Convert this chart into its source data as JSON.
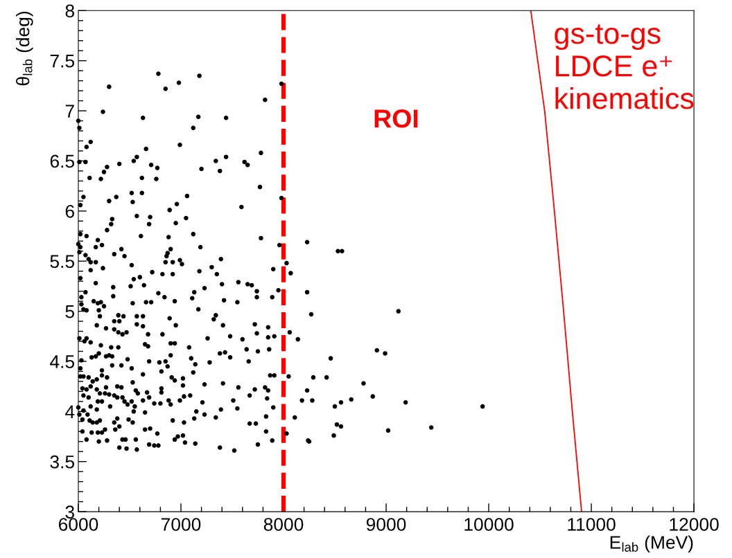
{
  "chart_data": {
    "type": "scatter",
    "xlabel": "E$_{lab}$ (MeV)",
    "ylabel": "θ$_{lab}$ (deg)",
    "xlim": [
      6000,
      12000
    ],
    "ylim": [
      3,
      8
    ],
    "xticks": [
      6000,
      {
        "value": 6200,
        "label": null
      },
      {
        "value": 6400,
        "label": null
      },
      {
        "value": 6600,
        "label": null
      },
      {
        "value": 6800,
        "label": null
      },
      7000,
      {
        "value": 7200,
        "label": null
      },
      {
        "value": 7400,
        "label": null
      },
      {
        "value": 7600,
        "label": null
      },
      {
        "value": 7800,
        "label": null
      },
      8000,
      {
        "value": 8200,
        "label": null
      },
      {
        "value": 8400,
        "label": null
      },
      {
        "value": 8600,
        "label": null
      },
      {
        "value": 8800,
        "label": null
      },
      9000,
      {
        "value": 9200,
        "label": null
      },
      {
        "value": 9400,
        "label": null
      },
      {
        "value": 9600,
        "label": null
      },
      {
        "value": 9800,
        "label": null
      },
      10000,
      {
        "value": 10200,
        "label": null
      },
      {
        "value": 10400,
        "label": null
      },
      {
        "value": 10600,
        "label": null
      },
      {
        "value": 10800,
        "label": null
      },
      11000,
      {
        "value": 11200,
        "label": null
      },
      {
        "value": 11400,
        "label": null
      },
      {
        "value": 11600,
        "label": null
      },
      {
        "value": 11800,
        "label": null
      },
      12000
    ],
    "yticks": [
      3,
      {
        "value": 3.1,
        "label": null
      },
      {
        "value": 3.2,
        "label": null
      },
      {
        "value": 3.3,
        "label": null
      },
      {
        "value": 3.4,
        "label": null
      },
      3.5,
      {
        "value": 3.6,
        "label": null
      },
      {
        "value": 3.7,
        "label": null
      },
      {
        "value": 3.8,
        "label": null
      },
      {
        "value": 3.9,
        "label": null
      },
      4,
      {
        "value": 4.1,
        "label": null
      },
      {
        "value": 4.2,
        "label": null
      },
      {
        "value": 4.3,
        "label": null
      },
      {
        "value": 4.4,
        "label": null
      },
      4.5,
      {
        "value": 4.6,
        "label": null
      },
      {
        "value": 4.7,
        "label": null
      },
      {
        "value": 4.8,
        "label": null
      },
      {
        "value": 4.9,
        "label": null
      },
      5,
      {
        "value": 5.1,
        "label": null
      },
      {
        "value": 5.2,
        "label": null
      },
      {
        "value": 5.3,
        "label": null
      },
      {
        "value": 5.4,
        "label": null
      },
      5.5,
      {
        "value": 5.6,
        "label": null
      },
      {
        "value": 5.7,
        "label": null
      },
      {
        "value": 5.8,
        "label": null
      },
      {
        "value": 5.9,
        "label": null
      },
      6,
      {
        "value": 6.1,
        "label": null
      },
      {
        "value": 6.2,
        "label": null
      },
      {
        "value": 6.3,
        "label": null
      },
      {
        "value": 6.4,
        "label": null
      },
      6.5,
      {
        "value": 6.6,
        "label": null
      },
      {
        "value": 6.7,
        "label": null
      },
      {
        "value": 6.8,
        "label": null
      },
      {
        "value": 6.9,
        "label": null
      },
      7,
      {
        "value": 7.1,
        "label": null
      },
      {
        "value": 7.2,
        "label": null
      },
      {
        "value": 7.3,
        "label": null
      },
      {
        "value": 7.4,
        "label": null
      },
      7.5,
      {
        "value": 7.6,
        "label": null
      },
      {
        "value": 7.7,
        "label": null
      },
      {
        "value": 7.8,
        "label": null
      },
      {
        "value": 7.9,
        "label": null
      },
      8
    ],
    "ref_lines": [
      {
        "axis": "x",
        "value": 8000,
        "label": "ROI",
        "color": "#ff0000",
        "line_style": "dashed"
      }
    ],
    "series": [
      {
        "color": "#000000",
        "marker": "circle",
        "x": [
          6000,
          6010,
          6120,
          6080,
          6240,
          6300,
          6780,
          6850,
          6980,
          6630,
          6990,
          6660,
          6010,
          6070,
          6110,
          6220,
          6250,
          6280,
          6400,
          6540,
          6570,
          6710,
          6770,
          6620,
          6760,
          6020,
          6050,
          6300,
          6370,
          6520,
          6530,
          6620,
          6570,
          6700,
          6690,
          6890,
          6960,
          7060,
          7050,
          6330,
          6320,
          6280,
          6950,
          6610,
          6880,
          6020,
          6080,
          6000,
          6010,
          6020,
          6070,
          6100,
          6120,
          6190,
          6230,
          6170,
          6170,
          6240,
          6120,
          6020,
          6350,
          6420,
          6450,
          6520,
          6540,
          6600,
          6640,
          6720,
          6170,
          6340,
          6340,
          6510,
          6900,
          6870,
          6860,
          6850,
          6920,
          6990,
          7010,
          6820,
          6920,
          6780,
          6840,
          6940,
          6030,
          6070,
          6030,
          6050,
          6080,
          6150,
          6190,
          6220,
          6250,
          6200,
          6210,
          6180,
          6270,
          6350,
          6350,
          6390,
          6400,
          6440,
          6390,
          6430,
          6470,
          6530,
          6570,
          6630,
          6570,
          6630,
          6660,
          6710,
          6680,
          6650,
          6680,
          6820,
          6890,
          6900,
          6940,
          6950,
          6010,
          6080,
          6060,
          6120,
          6130,
          6170,
          6200,
          6220,
          6270,
          6300,
          6330,
          6320,
          6390,
          6030,
          6020,
          6230,
          6330,
          6420,
          6480,
          6520,
          6690,
          6630,
          6790,
          6850,
          6870,
          6810,
          6900,
          6910,
          6940,
          7020,
          7080,
          7100,
          7120,
          6020,
          6050,
          6100,
          6140,
          6120,
          6180,
          6230,
          6280,
          6040,
          6080,
          6180,
          6210,
          6260,
          6050,
          6100,
          6270,
          6300,
          6380,
          6420,
          6350,
          6380,
          6430,
          6000,
          6050,
          6120,
          6180,
          6190,
          6230,
          6310,
          6480,
          6450,
          6520,
          6530,
          6560,
          6580,
          6550,
          6540,
          6630,
          6670,
          6690,
          6650,
          6740,
          6800,
          6810,
          6810,
          6880,
          6900,
          6990,
          7030,
          7090,
          7020,
          6010,
          6040,
          6090,
          6110,
          6140,
          6180,
          6210,
          6040,
          6130,
          6080,
          6190,
          6200,
          6230,
          6260,
          6280,
          6360,
          6400,
          6380,
          6350,
          6400,
          6470,
          6430,
          6460,
          6490,
          6530,
          6560,
          6570,
          6650,
          6690,
          6700,
          6740,
          6780,
          6770,
          6920,
          6940,
          6970,
          7020,
          7030,
          7040,
          7180,
          7820,
          7980,
          7170,
          7440,
          7120,
          7780,
          7340,
          7440,
          7620,
          7650,
          7200,
          7380,
          7770,
          7980,
          7590,
          7120,
          7780,
          7190,
          7960,
          8230,
          7180,
          7390,
          7300,
          7350,
          7400,
          7560,
          7650,
          7690,
          7740,
          7740,
          7230,
          7130,
          7110,
          7420,
          7550,
          7890,
          7950,
          7900,
          8030,
          8070,
          8230,
          7170,
          7340,
          7320,
          7410,
          7720,
          7850,
          7740,
          7850,
          7910,
          7480,
          7600,
          7260,
          8060,
          8140,
          7380,
          7430,
          7480,
          7640,
          7750,
          7860,
          7660,
          7140,
          7280,
          7230,
          7410,
          7560,
          7720,
          7820,
          7850,
          7870,
          7910,
          8050,
          8230,
          7210,
          7510,
          7670,
          7840,
          7900,
          8180,
          7550,
          7390,
          7340,
          7230,
          7150,
          7130,
          7830,
          8110,
          7670,
          7730,
          7830,
          8030,
          7890,
          7750,
          7140,
          7380,
          7520,
          8240,
          8530,
          8570,
          9120,
          8270,
          8910,
          8990,
          8460,
          8290,
          8420,
          8780,
          8280,
          8500,
          8560,
          8660,
          8870,
          9190,
          9940,
          8520,
          8560,
          9020,
          9440,
          8490,
          8250
        ],
        "values": [
          6.9,
          6.83,
          6.69,
          6.64,
          6.99,
          7.24,
          7.37,
          7.22,
          7.28,
          6.93,
          6.66,
          6.62,
          6.49,
          6.49,
          6.33,
          6.32,
          6.39,
          6.44,
          6.47,
          6.5,
          6.54,
          6.46,
          6.43,
          6.33,
          6.32,
          6.06,
          6.14,
          6.1,
          6.14,
          6.18,
          6.09,
          6.18,
          5.95,
          5.94,
          5.87,
          6.01,
          6.07,
          6.15,
          5.93,
          5.92,
          5.87,
          5.81,
          5.88,
          5.75,
          5.74,
          5.77,
          5.75,
          5.67,
          5.59,
          5.64,
          5.56,
          5.52,
          5.49,
          5.71,
          5.66,
          5.64,
          5.49,
          5.43,
          5.41,
          5.33,
          5.57,
          5.62,
          5.55,
          5.46,
          5.32,
          5.34,
          5.26,
          5.39,
          5.28,
          5.24,
          5.15,
          5.25,
          5.62,
          5.58,
          5.55,
          5.49,
          5.49,
          5.51,
          5.47,
          5.37,
          5.37,
          5.18,
          5.14,
          5.1,
          5.14,
          5.19,
          5.07,
          5.02,
          5.01,
          5.1,
          5.08,
          5.09,
          5.05,
          5.01,
          4.95,
          4.86,
          4.83,
          4.9,
          4.82,
          4.96,
          4.9,
          4.95,
          4.79,
          4.77,
          4.79,
          5.08,
          4.95,
          4.95,
          4.87,
          4.85,
          5.09,
          5.09,
          4.77,
          4.67,
          4.65,
          4.77,
          4.93,
          4.68,
          4.68,
          4.86,
          4.73,
          4.73,
          4.7,
          4.69,
          4.54,
          4.55,
          4.58,
          4.66,
          4.55,
          4.56,
          4.55,
          4.64,
          4.64,
          4.51,
          4.43,
          4.41,
          4.46,
          4.46,
          4.52,
          4.43,
          4.5,
          4.37,
          4.49,
          4.5,
          4.45,
          4.4,
          4.56,
          4.34,
          4.31,
          4.33,
          4.64,
          4.53,
          4.39,
          4.35,
          4.35,
          4.34,
          4.3,
          4.25,
          4.32,
          4.36,
          4.34,
          4.23,
          4.22,
          4.22,
          4.18,
          4.18,
          4.16,
          4.14,
          4.24,
          4.17,
          4.25,
          4.24,
          4.16,
          4.14,
          4.14,
          4.04,
          4.01,
          4.05,
          4.02,
          4.1,
          4.1,
          4.05,
          4.07,
          4.1,
          4.1,
          4.29,
          4.21,
          4.18,
          4.05,
          4.0,
          4.11,
          4.19,
          4.14,
          3.99,
          4.08,
          4.08,
          4.19,
          4.23,
          4.11,
          4.07,
          4.11,
          4.15,
          4.16,
          4.26,
          3.97,
          3.92,
          3.97,
          3.91,
          3.89,
          3.89,
          3.91,
          3.8,
          3.79,
          3.72,
          3.79,
          3.7,
          3.79,
          3.82,
          3.71,
          3.82,
          3.85,
          3.93,
          3.89,
          3.64,
          3.63,
          3.72,
          3.72,
          3.92,
          3.89,
          3.72,
          3.62,
          3.82,
          3.67,
          3.83,
          3.66,
          3.66,
          3.78,
          3.91,
          3.72,
          3.75,
          3.76,
          3.89,
          3.69,
          7.35,
          7.11,
          7.27,
          6.94,
          6.93,
          6.83,
          6.58,
          6.5,
          6.54,
          6.49,
          6.46,
          6.42,
          6.4,
          6.24,
          6.13,
          6.04,
          5.77,
          5.73,
          5.64,
          5.66,
          5.69,
          5.4,
          5.52,
          5.44,
          5.37,
          5.27,
          5.29,
          5.27,
          5.26,
          5.2,
          5.14,
          5.23,
          5.19,
          5.13,
          5.11,
          5.09,
          5.14,
          5.21,
          5.42,
          5.48,
          5.38,
          5.19,
          5.02,
          4.96,
          4.92,
          4.86,
          4.87,
          4.84,
          4.78,
          4.74,
          4.75,
          4.75,
          4.72,
          4.73,
          4.79,
          4.72,
          4.58,
          4.59,
          4.54,
          4.62,
          4.6,
          4.62,
          4.5,
          4.47,
          4.49,
          4.27,
          4.28,
          4.24,
          4.22,
          4.24,
          4.21,
          4.36,
          4.36,
          4.35,
          4.21,
          4.09,
          4.11,
          4.16,
          4.13,
          4.04,
          4.11,
          4.03,
          4.02,
          3.94,
          3.97,
          4.0,
          3.93,
          3.95,
          3.94,
          3.88,
          3.88,
          3.8,
          3.78,
          3.71,
          3.67,
          3.68,
          3.64,
          3.61,
          3.71,
          5.6,
          5.6,
          5.0,
          4.97,
          4.61,
          4.58,
          4.53,
          4.34,
          4.34,
          4.28,
          4.11,
          4.05,
          4.09,
          4.12,
          4.15,
          4.09,
          4.05,
          3.87,
          3.85,
          3.81,
          3.84,
          3.76,
          3.7
        ]
      },
      {
        "type": "line",
        "name": "gs-to-gs\nLDCE e⁺\nkinematics",
        "color": "#ff0000",
        "x": [
          10410,
          10545,
          10640,
          10730,
          10815,
          10905
        ],
        "values": [
          8,
          7,
          6,
          5,
          4,
          3
        ]
      }
    ]
  }
}
